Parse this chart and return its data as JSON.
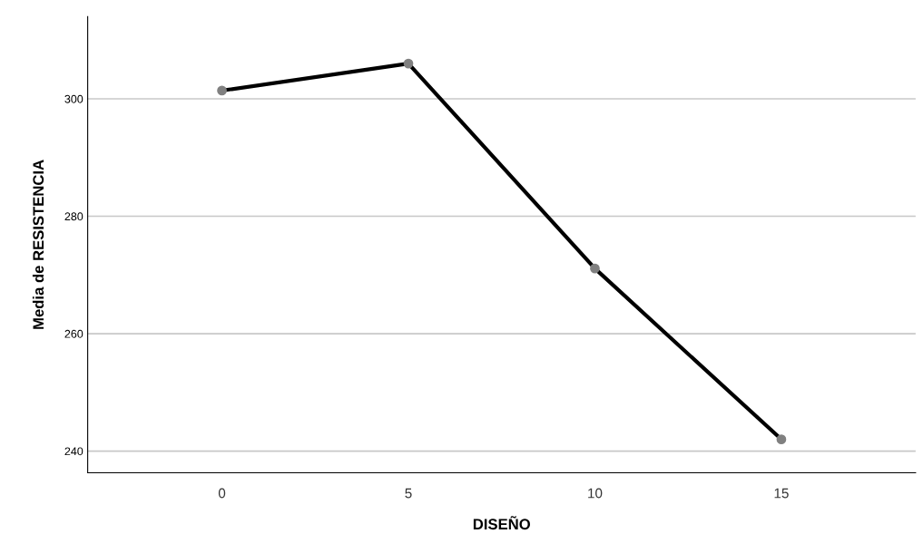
{
  "chart_data": {
    "type": "line",
    "xlabel": "DISEÑO",
    "ylabel": "Media de RESISTENCIA",
    "x": [
      0,
      5,
      10,
      15
    ],
    "series": [
      {
        "color": "#000000",
        "colors": [
          "#808080",
          "#808080",
          "#808080",
          "#808080"
        ],
        "values": [
          301.4,
          306.0,
          271.1,
          242.0
        ]
      }
    ],
    "xlim": [
      -3.6,
      18.6
    ],
    "xticks": [
      0,
      5,
      10,
      15
    ],
    "ylim": [
      236.3,
      314.0
    ],
    "yticks": [
      240,
      260,
      280,
      300
    ],
    "grid": "y",
    "marker": "circle",
    "line_style": "solid",
    "legend": false
  }
}
